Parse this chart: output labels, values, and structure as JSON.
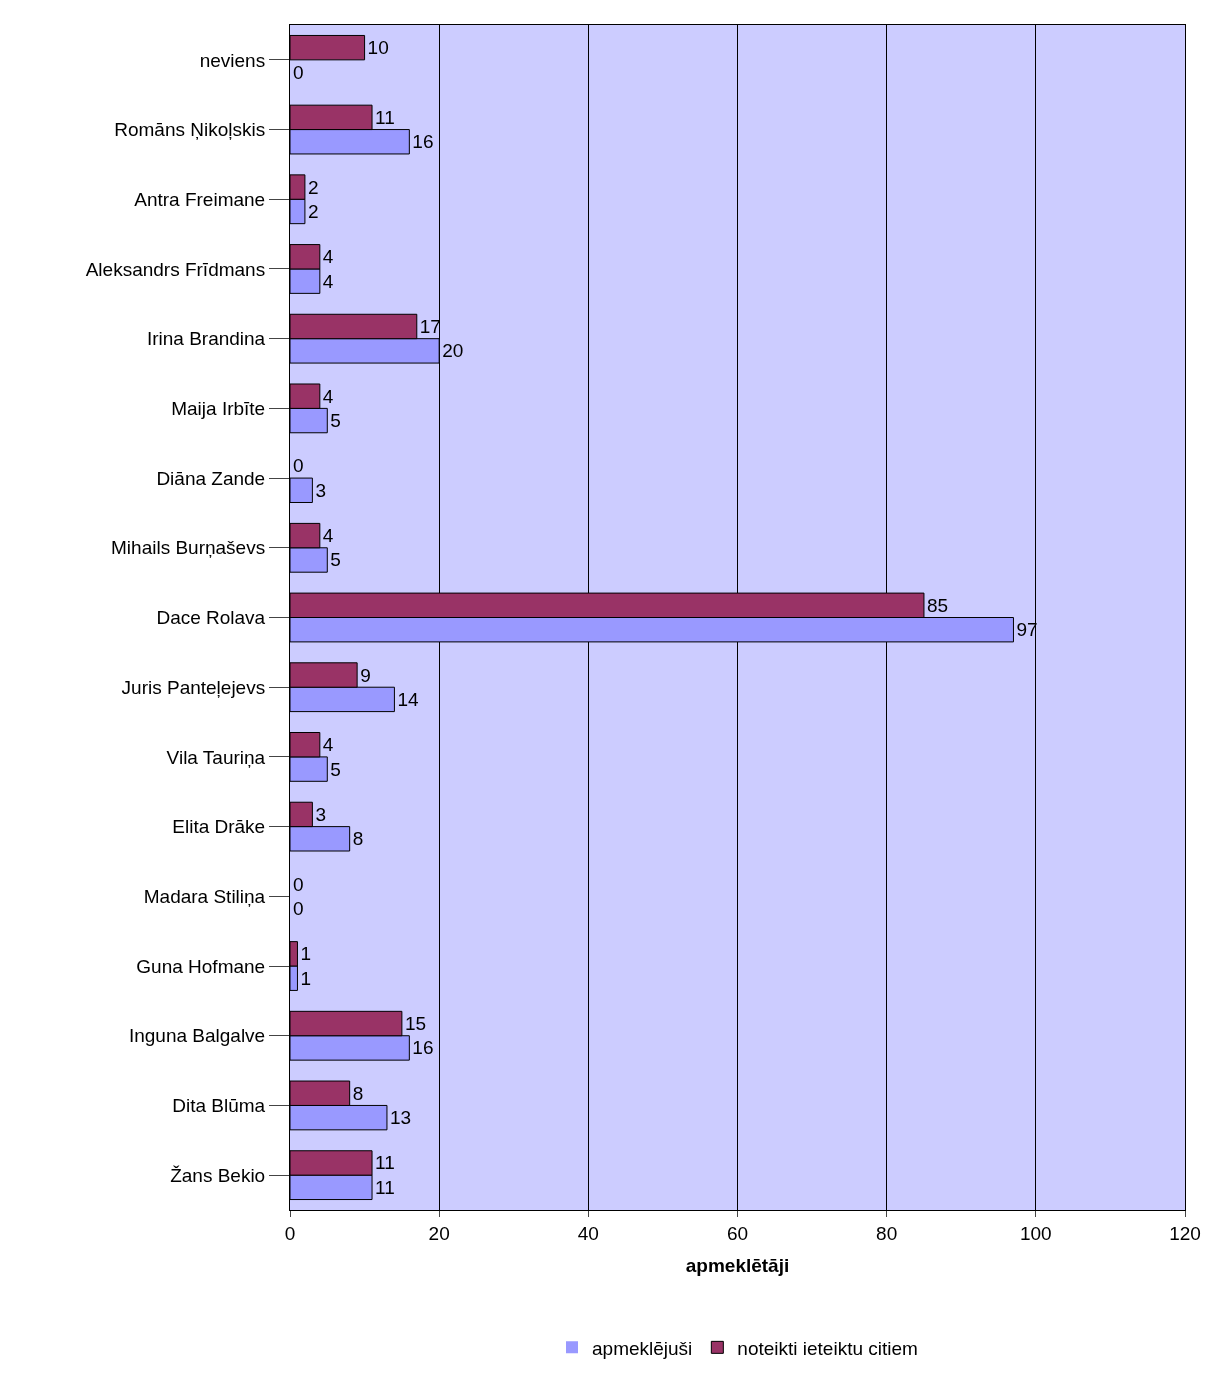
{
  "chart_data": {
    "type": "bar",
    "orientation": "horizontal",
    "xlabel": "apmeklētāji",
    "categories": [
      "neviens",
      "Romāns Ņikoļskis",
      "Antra Freimane",
      "Aleksandrs Frīdmans",
      "Irina Brandina",
      "Maija Irbīte",
      "Diāna Zande",
      "Mihails Burņaševs",
      "Dace Rolava",
      "Juris Panteļejevs",
      "Vila Tauriņa",
      "Elita Drāke",
      "Madara Stiliņa",
      "Guna Hofmane",
      "Inguna Balgalve",
      "Dita Blūma",
      "Žans Bekio"
    ],
    "series": [
      {
        "name": "apmeklējuši",
        "color": "#9999ff",
        "values": [
          0,
          16,
          2,
          4,
          20,
          5,
          3,
          5,
          97,
          14,
          5,
          8,
          0,
          1,
          16,
          13,
          11
        ]
      },
      {
        "name": "noteikti ieteiktu citiem",
        "color": "#993366",
        "values": [
          10,
          11,
          2,
          4,
          17,
          4,
          0,
          4,
          85,
          9,
          4,
          3,
          0,
          1,
          15,
          8,
          11
        ]
      }
    ],
    "xlim": [
      0,
      120
    ],
    "xticks": [
      0,
      20,
      40,
      60,
      80,
      100,
      120
    ],
    "grid": "x",
    "legend": "bottom",
    "data_labels": true
  }
}
